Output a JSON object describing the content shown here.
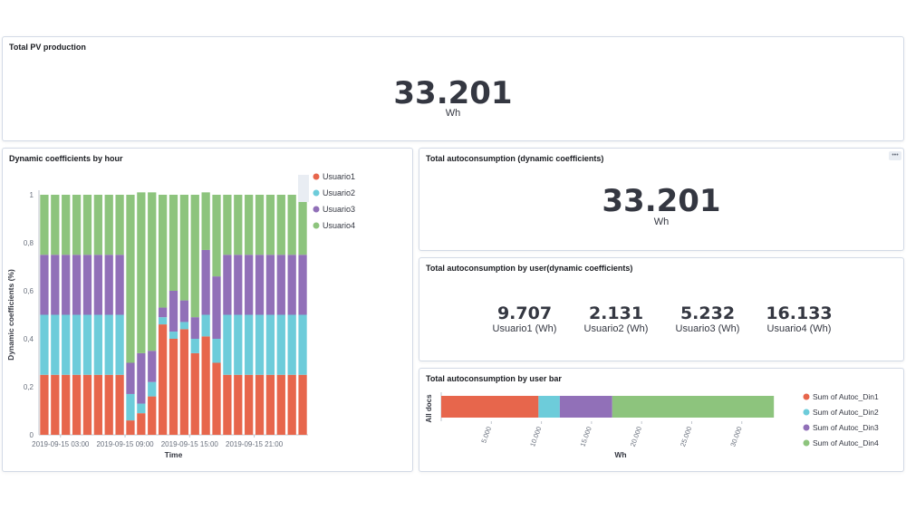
{
  "panels": {
    "pv": {
      "title": "Total PV production",
      "value": "33.201",
      "unit": "Wh"
    },
    "dyn": {
      "title": "Dynamic coefficients by hour"
    },
    "auto": {
      "title": "Total autoconsumption (dynamic coefficients)",
      "value": "33.201",
      "unit": "Wh",
      "menu_icon": "ellipsis-icon"
    },
    "byuser": {
      "title": "Total autoconsumption by user(dynamic coefficients)",
      "metrics": [
        {
          "value": "9.707",
          "label": "Usuario1 (Wh)"
        },
        {
          "value": "2.131",
          "label": "Usuario2 (Wh)"
        },
        {
          "value": "5.232",
          "label": "Usuario3 (Wh)"
        },
        {
          "value": "16.133",
          "label": "Usuario4 (Wh)"
        }
      ]
    },
    "bar": {
      "title": "Total autoconsumption by user bar"
    }
  },
  "colors": {
    "u1": "#e7664c",
    "u2": "#6dccda",
    "u3": "#9170b8",
    "u4": "#8dc47d"
  },
  "chart_data": [
    {
      "type": "bar",
      "stacked": true,
      "xlabel": "Time",
      "ylabel": "Dynamic coefficients (%)",
      "ylim": [
        0,
        1
      ],
      "yticks": [
        "0",
        "0,2",
        "0,4",
        "0,6",
        "0,8",
        "1"
      ],
      "xticks": [
        "2019-09-15 03:00",
        "2019-09-15 09:00",
        "2019-09-15 15:00",
        "2019-09-15 21:00"
      ],
      "legend": [
        "Usuario1",
        "Usuario2",
        "Usuario3",
        "Usuario4"
      ],
      "legend_position": "right",
      "series": [
        {
          "name": "Usuario1",
          "values": [
            0.25,
            0.25,
            0.25,
            0.25,
            0.25,
            0.25,
            0.25,
            0.25,
            0.06,
            0.09,
            0.16,
            0.46,
            0.4,
            0.44,
            0.34,
            0.41,
            0.3,
            0.25,
            0.25,
            0.25,
            0.25,
            0.25,
            0.25,
            0.25,
            0.25
          ]
        },
        {
          "name": "Usuario2",
          "values": [
            0.25,
            0.25,
            0.25,
            0.25,
            0.25,
            0.25,
            0.25,
            0.25,
            0.11,
            0.04,
            0.06,
            0.03,
            0.03,
            0.03,
            0.06,
            0.09,
            0.1,
            0.25,
            0.25,
            0.25,
            0.25,
            0.25,
            0.25,
            0.25,
            0.25
          ]
        },
        {
          "name": "Usuario3",
          "values": [
            0.25,
            0.25,
            0.25,
            0.25,
            0.25,
            0.25,
            0.25,
            0.25,
            0.13,
            0.21,
            0.13,
            0.04,
            0.17,
            0.09,
            0.09,
            0.27,
            0.26,
            0.25,
            0.25,
            0.25,
            0.25,
            0.25,
            0.25,
            0.25,
            0.25
          ]
        },
        {
          "name": "Usuario4",
          "values": [
            0.25,
            0.25,
            0.25,
            0.25,
            0.25,
            0.25,
            0.25,
            0.25,
            0.7,
            0.67,
            0.66,
            0.47,
            0.4,
            0.44,
            0.51,
            0.24,
            0.34,
            0.25,
            0.25,
            0.25,
            0.25,
            0.25,
            0.25,
            0.25,
            0.25
          ]
        }
      ]
    },
    {
      "type": "bar",
      "orientation": "horizontal",
      "stacked": true,
      "category": "All docs",
      "xlabel": "Wh",
      "xlim": [
        0,
        34000
      ],
      "xticks": [
        "5.000",
        "10.000",
        "15.000",
        "20.000",
        "25.000",
        "30.000"
      ],
      "legend_position": "right",
      "series": [
        {
          "name": "Sum of Autoc_Din1",
          "value": 9707
        },
        {
          "name": "Sum of Autoc_Din2",
          "value": 2131
        },
        {
          "name": "Sum of Autoc_Din3",
          "value": 5232
        },
        {
          "name": "Sum of Autoc_Din4",
          "value": 16133
        }
      ]
    }
  ]
}
